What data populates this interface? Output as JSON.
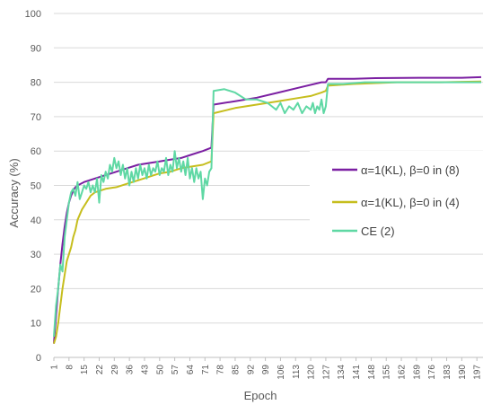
{
  "chart_data": {
    "type": "line",
    "xlabel": "Epoch",
    "ylabel": "Accuracy (%)",
    "xlim": [
      1,
      199
    ],
    "ylim": [
      0,
      100
    ],
    "y_ticks": [
      0,
      10,
      20,
      30,
      40,
      50,
      60,
      70,
      80,
      90,
      100
    ],
    "x_tick_labels": [
      "1",
      "8",
      "15",
      "22",
      "29",
      "36",
      "43",
      "50",
      "57",
      "64",
      "71",
      "78",
      "85",
      "92",
      "99",
      "106",
      "113",
      "120",
      "127",
      "134",
      "141",
      "148",
      "155",
      "162",
      "169",
      "176",
      "183",
      "190",
      "197"
    ],
    "grid": "horizontal",
    "legend_position": "right",
    "series": [
      {
        "name": "α=1(KL), β=0 in (8)",
        "color": "#7B1FA2",
        "points": [
          [
            1,
            4
          ],
          [
            2,
            12
          ],
          [
            3,
            20
          ],
          [
            4,
            27
          ],
          [
            5,
            33
          ],
          [
            6,
            38
          ],
          [
            7,
            42
          ],
          [
            8,
            45
          ],
          [
            9,
            47
          ],
          [
            10,
            48.5
          ],
          [
            11,
            49.5
          ],
          [
            12,
            50
          ],
          [
            15,
            51
          ],
          [
            20,
            52
          ],
          [
            25,
            53
          ],
          [
            30,
            54
          ],
          [
            35,
            55
          ],
          [
            40,
            56
          ],
          [
            45,
            56.5
          ],
          [
            50,
            57
          ],
          [
            55,
            57.5
          ],
          [
            60,
            58
          ],
          [
            65,
            59
          ],
          [
            70,
            60
          ],
          [
            74,
            61
          ],
          [
            75,
            73.5
          ],
          [
            85,
            74.5
          ],
          [
            95,
            75.5
          ],
          [
            105,
            77
          ],
          [
            115,
            78.5
          ],
          [
            125,
            80
          ],
          [
            127,
            80
          ],
          [
            128,
            81
          ],
          [
            140,
            81
          ],
          [
            150,
            81.2
          ],
          [
            170,
            81.3
          ],
          [
            190,
            81.3
          ],
          [
            199,
            81.5
          ]
        ]
      },
      {
        "name": "α=1(KL), β=0 in (4)",
        "color": "#C6BE1E",
        "points": [
          [
            1,
            4
          ],
          [
            2,
            6
          ],
          [
            3,
            10
          ],
          [
            4,
            15
          ],
          [
            5,
            20
          ],
          [
            6,
            24
          ],
          [
            7,
            28
          ],
          [
            8,
            30
          ],
          [
            9,
            32
          ],
          [
            10,
            35
          ],
          [
            11,
            37
          ],
          [
            12,
            40
          ],
          [
            14,
            43
          ],
          [
            16,
            45
          ],
          [
            18,
            47
          ],
          [
            20,
            48
          ],
          [
            25,
            49
          ],
          [
            30,
            49.5
          ],
          [
            35,
            50.5
          ],
          [
            40,
            51.5
          ],
          [
            45,
            52.5
          ],
          [
            50,
            53.5
          ],
          [
            55,
            54
          ],
          [
            60,
            55
          ],
          [
            65,
            55.5
          ],
          [
            70,
            56
          ],
          [
            74,
            57
          ],
          [
            75,
            71
          ],
          [
            85,
            72.5
          ],
          [
            95,
            73.5
          ],
          [
            105,
            74.5
          ],
          [
            115,
            75.5
          ],
          [
            120,
            76
          ],
          [
            125,
            77
          ],
          [
            127,
            77.5
          ],
          [
            128,
            79
          ],
          [
            140,
            79.5
          ],
          [
            160,
            80
          ],
          [
            180,
            80
          ],
          [
            199,
            80.2
          ]
        ]
      },
      {
        "name": "CE (2)",
        "color": "#5FD8A4",
        "points": [
          [
            1,
            6
          ],
          [
            2,
            15
          ],
          [
            3,
            20
          ],
          [
            4,
            27
          ],
          [
            5,
            25
          ],
          [
            6,
            35
          ],
          [
            7,
            40
          ],
          [
            8,
            45
          ],
          [
            9,
            48
          ],
          [
            10,
            49
          ],
          [
            11,
            47
          ],
          [
            12,
            51
          ],
          [
            13,
            46
          ],
          [
            14,
            48
          ],
          [
            15,
            50
          ],
          [
            16,
            49
          ],
          [
            17,
            51
          ],
          [
            18,
            48
          ],
          [
            19,
            50
          ],
          [
            20,
            48
          ],
          [
            21,
            52
          ],
          [
            22,
            45
          ],
          [
            23,
            53
          ],
          [
            24,
            51
          ],
          [
            25,
            54
          ],
          [
            26,
            52
          ],
          [
            27,
            56
          ],
          [
            28,
            54
          ],
          [
            29,
            58
          ],
          [
            30,
            55
          ],
          [
            31,
            57
          ],
          [
            32,
            53
          ],
          [
            33,
            56
          ],
          [
            34,
            52
          ],
          [
            35,
            55
          ],
          [
            36,
            50
          ],
          [
            37,
            54
          ],
          [
            38,
            51
          ],
          [
            39,
            55
          ],
          [
            40,
            52
          ],
          [
            41,
            56
          ],
          [
            42,
            53
          ],
          [
            43,
            55
          ],
          [
            44,
            52
          ],
          [
            45,
            56
          ],
          [
            46,
            53
          ],
          [
            47,
            55
          ],
          [
            48,
            54
          ],
          [
            49,
            57
          ],
          [
            50,
            53
          ],
          [
            51,
            55
          ],
          [
            52,
            54
          ],
          [
            53,
            58
          ],
          [
            54,
            53
          ],
          [
            55,
            56
          ],
          [
            56,
            54
          ],
          [
            57,
            60
          ],
          [
            58,
            55
          ],
          [
            59,
            58
          ],
          [
            60,
            54
          ],
          [
            61,
            57
          ],
          [
            62,
            53
          ],
          [
            63,
            58
          ],
          [
            64,
            52
          ],
          [
            65,
            55
          ],
          [
            66,
            51
          ],
          [
            67,
            55
          ],
          [
            68,
            52
          ],
          [
            69,
            54
          ],
          [
            70,
            46
          ],
          [
            71,
            52
          ],
          [
            72,
            50
          ],
          [
            73,
            54
          ],
          [
            74,
            55
          ],
          [
            75,
            77.5
          ],
          [
            80,
            78
          ],
          [
            85,
            77
          ],
          [
            90,
            75
          ],
          [
            95,
            75
          ],
          [
            100,
            74
          ],
          [
            102,
            73
          ],
          [
            104,
            72
          ],
          [
            106,
            74
          ],
          [
            108,
            71
          ],
          [
            110,
            73
          ],
          [
            112,
            72
          ],
          [
            114,
            74
          ],
          [
            116,
            71
          ],
          [
            118,
            73
          ],
          [
            120,
            72
          ],
          [
            121,
            74
          ],
          [
            122,
            71
          ],
          [
            123,
            73
          ],
          [
            124,
            72
          ],
          [
            125,
            75
          ],
          [
            126,
            71
          ],
          [
            127,
            73
          ],
          [
            128,
            79.5
          ],
          [
            135,
            79.5
          ],
          [
            145,
            80
          ],
          [
            160,
            80
          ],
          [
            180,
            80
          ],
          [
            199,
            80
          ]
        ]
      }
    ]
  }
}
